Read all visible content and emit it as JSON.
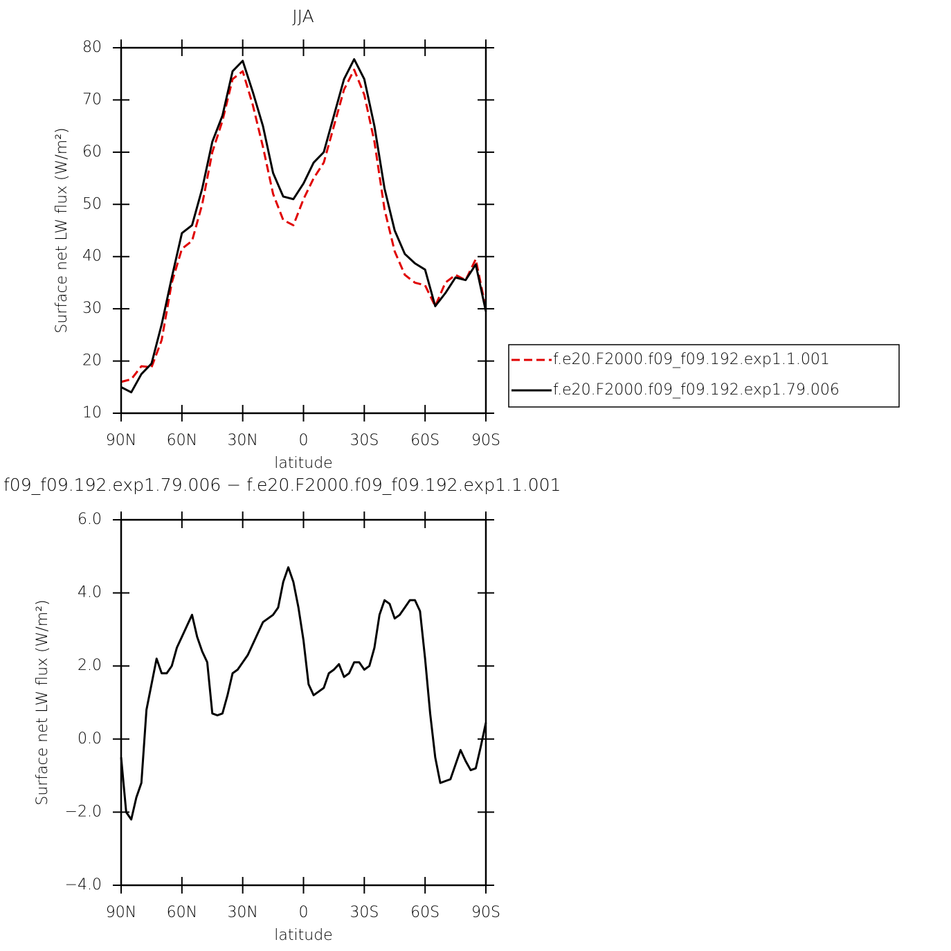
{
  "chart_data": [
    {
      "type": "line",
      "title": "JJA",
      "x_label": "latitude",
      "y_label": "Surface net LW flux (W/m²)",
      "x": [
        90,
        85,
        80,
        75,
        70,
        65,
        60,
        55,
        50,
        45,
        40,
        35,
        30,
        25,
        20,
        15,
        10,
        5,
        0,
        -5,
        -10,
        -15,
        -20,
        -25,
        -30,
        -35,
        -40,
        -45,
        -50,
        -55,
        -60,
        -65,
        -70,
        -75,
        -80,
        -85,
        -90
      ],
      "series": [
        {
          "name": "f.e20.F2000.f09_f09.192.exp1.1.001",
          "color": "#e00000",
          "dash": true,
          "values": [
            16,
            16.5,
            19,
            18.8,
            24,
            35,
            41.5,
            43,
            50,
            60,
            66,
            74,
            75.5,
            69,
            61,
            52,
            47,
            46,
            51,
            55,
            58,
            65,
            72,
            75.8,
            71,
            62,
            49,
            41,
            36.5,
            35,
            34.5,
            30.5,
            35,
            36.5,
            35.5,
            39.5,
            30
          ]
        },
        {
          "name": "f.e20.F2000.f09_f09.192.exp1.79.006",
          "color": "#000000",
          "dash": false,
          "values": [
            15,
            14,
            17.5,
            19.5,
            27,
            36,
            44.5,
            46,
            53,
            62,
            67,
            75.5,
            77.5,
            71.5,
            65,
            56,
            51.5,
            51,
            54,
            58,
            60,
            67,
            74,
            77.8,
            74,
            65,
            53,
            45,
            40.5,
            38.7,
            37.5,
            30.5,
            33,
            36,
            35.5,
            38.5,
            29.5
          ]
        }
      ],
      "xlim": [
        90,
        -90
      ],
      "xticks": [
        {
          "value": 90,
          "label": "90N"
        },
        {
          "value": 60,
          "label": "60N"
        },
        {
          "value": 30,
          "label": "30N"
        },
        0,
        {
          "value": -30,
          "label": "30S"
        },
        {
          "value": -60,
          "label": "60S"
        },
        {
          "value": -90,
          "label": "90S"
        }
      ],
      "ylim": [
        10,
        80
      ],
      "yticks": [
        10,
        20,
        30,
        40,
        50,
        60,
        70,
        80
      ],
      "legend": "right"
    },
    {
      "type": "line",
      "title": "f09_f09.192.exp1.79.006 − f.e20.F2000.f09_f09.192.exp1.1.001",
      "x_label": "latitude",
      "y_label": "Surface net LW flux (W/m²)",
      "x": [
        90,
        87.5,
        85,
        82.5,
        80,
        77.5,
        75,
        72.5,
        70,
        67.5,
        65,
        62.5,
        60,
        57.5,
        55,
        52.5,
        50,
        47.5,
        45,
        42.5,
        40,
        37.5,
        35,
        32.5,
        30,
        27.5,
        25,
        22.5,
        20,
        17.5,
        15,
        12.5,
        10,
        7.5,
        5,
        2.5,
        0,
        -2.5,
        -5,
        -7.5,
        -10,
        -12.5,
        -15,
        -17.5,
        -20,
        -22.5,
        -25,
        -27.5,
        -30,
        -32.5,
        -35,
        -37.5,
        -40,
        -42.5,
        -45,
        -47.5,
        -50,
        -52.5,
        -55,
        -57.5,
        -60,
        -62.5,
        -65,
        -67.5,
        -70,
        -72.5,
        -75,
        -77.5,
        -80,
        -82.5,
        -85,
        -87.5,
        -90
      ],
      "series": [
        {
          "color": "#000000",
          "dash": false,
          "values": [
            -0.5,
            -2,
            -2.2,
            -1.6,
            -1.2,
            0.8,
            1.5,
            2.2,
            1.8,
            1.8,
            2.0,
            2.5,
            2.8,
            3.1,
            3.4,
            2.8,
            2.4,
            2.1,
            0.7,
            0.65,
            0.7,
            1.2,
            1.8,
            1.9,
            2.1,
            2.3,
            2.6,
            2.9,
            3.2,
            3.3,
            3.4,
            3.6,
            4.3,
            4.7,
            4.3,
            3.6,
            2.7,
            1.5,
            1.2,
            1.3,
            1.4,
            1.8,
            1.9,
            2.05,
            1.7,
            1.8,
            2.1,
            2.1,
            1.9,
            2.0,
            2.5,
            3.4,
            3.8,
            3.7,
            3.3,
            3.4,
            3.6,
            3.8,
            3.8,
            3.5,
            2.2,
            0.7,
            -0.5,
            -1.2,
            -1.15,
            -1.1,
            -0.7,
            -0.3,
            -0.6,
            -0.85,
            -0.8,
            -0.2,
            0.45
          ]
        }
      ],
      "xlim": [
        90,
        -90
      ],
      "xticks": [
        {
          "value": 90,
          "label": "90N"
        },
        {
          "value": 60,
          "label": "60N"
        },
        {
          "value": 30,
          "label": "30N"
        },
        0,
        {
          "value": -30,
          "label": "30S"
        },
        {
          "value": -60,
          "label": "60S"
        },
        {
          "value": -90,
          "label": "90S"
        }
      ],
      "ylim": [
        -4,
        6
      ],
      "yticks": [
        {
          "value": -4,
          "label": "−4.0"
        },
        {
          "value": -2,
          "label": "−2.0"
        },
        {
          "value": 0,
          "label": "0.0"
        },
        {
          "value": 2,
          "label": "2.0"
        },
        {
          "value": 4,
          "label": "4.0"
        },
        {
          "value": 6,
          "label": "6.0"
        }
      ]
    }
  ]
}
